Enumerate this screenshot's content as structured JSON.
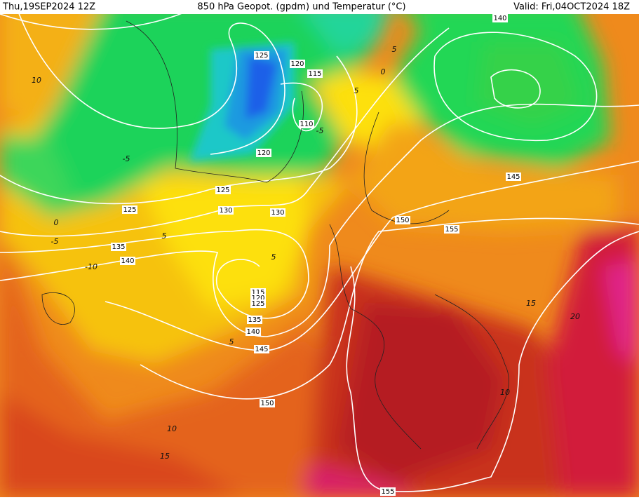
{
  "header": {
    "init": "Thu,19SEP2024 12Z",
    "title": "850 hPa Geopot. (gpdm) und Temperatur (°C)",
    "valid": "Valid: Fri,04OCT2024 18Z"
  },
  "geopotential_labels": [
    "140",
    "125",
    "120",
    "115",
    "110",
    "120",
    "125",
    "145",
    "125",
    "130",
    "130",
    "150",
    "155",
    "135",
    "140",
    "115",
    "120",
    "125",
    "135",
    "140",
    "145",
    "150",
    "155"
  ],
  "temperature_labels": [
    "10",
    "5",
    "0",
    "5",
    "-5",
    "-5",
    "0",
    "-5",
    "-10",
    "5",
    "5",
    "5",
    "10",
    "15",
    "10",
    "15",
    "20"
  ]
}
